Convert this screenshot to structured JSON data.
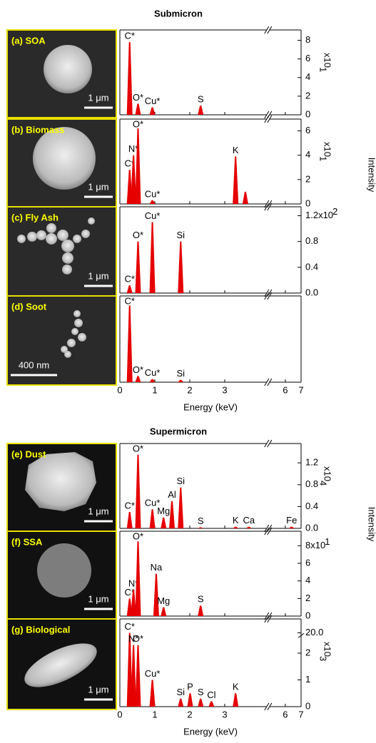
{
  "figure": {
    "section_titles": [
      "Submicron",
      "Supermicron"
    ],
    "x_label": "Energy (keV)",
    "y_label": "Intensity"
  },
  "chart_data": [
    {
      "type": "spectrum",
      "title": "(a) SOA",
      "scale_bar": "1 μm",
      "color": "#e60000",
      "x": [
        0.28,
        0.52,
        0.93,
        2.31
      ],
      "values": [
        7.8,
        1.2,
        0.8,
        1.0
      ],
      "peak_labels": [
        "C*",
        "O*",
        "Cu*",
        "S"
      ],
      "xlim": [
        0,
        7
      ],
      "xticks": [
        0,
        1,
        2,
        3,
        6,
        7
      ],
      "xbreak": [
        4.2,
        5
      ],
      "ylim": [
        0,
        8.5
      ],
      "yticks": [
        0,
        2,
        4,
        6,
        8
      ],
      "y_multiplier": "x10",
      "y_exponent": "1"
    },
    {
      "type": "spectrum",
      "title": "(b) Biomass",
      "scale_bar": "1 μm",
      "color": "#e60000",
      "x": [
        0.28,
        0.39,
        0.52,
        0.93,
        3.31,
        3.59
      ],
      "values": [
        2.8,
        4.0,
        6.2,
        0.3,
        3.9,
        1.0
      ],
      "peak_labels": [
        "C*",
        "N*",
        "O*",
        "Cu*",
        "K",
        null
      ],
      "xlim": [
        0,
        7
      ],
      "xticks": [
        0,
        1,
        2,
        3,
        6,
        7
      ],
      "xbreak": [
        4.2,
        5
      ],
      "ylim": [
        0,
        6.5
      ],
      "yticks": [
        0,
        2,
        4,
        6
      ],
      "y_multiplier": "x10",
      "y_exponent": "1"
    },
    {
      "type": "spectrum",
      "title": "(c) Fly Ash",
      "scale_bar": "1 μm",
      "color": "#e60000",
      "x": [
        0.28,
        0.52,
        0.93,
        1.74
      ],
      "values": [
        0.12,
        0.8,
        1.1,
        0.8
      ],
      "peak_labels": [
        "C*",
        "O*",
        "Cu*",
        "Si"
      ],
      "xlim": [
        0,
        7
      ],
      "xticks": [
        0,
        1,
        2,
        3,
        6,
        7
      ],
      "xbreak": [
        4.2,
        5
      ],
      "ylim": [
        0,
        1.25
      ],
      "yticks": [
        {
          "value": 0,
          "label": "0.0"
        },
        0.4,
        0.8,
        1.2
      ],
      "y_multiplier": "x10",
      "y_exponent": "2",
      "multiplier_inline": true
    },
    {
      "type": "spectrum",
      "title": "(d) Soot",
      "scale_bar": "400 nm",
      "color": "#e60000",
      "x": [
        0.28,
        0.52,
        0.93,
        1.74
      ],
      "values": [
        1.0,
        0.08,
        0.04,
        0.03
      ],
      "peak_labels": [
        "C*",
        "O*",
        "Cu*",
        "Si"
      ],
      "xlim": [
        0,
        7
      ],
      "xticks": [
        0,
        1,
        2,
        3,
        6,
        7
      ],
      "xbreak": [
        4.2,
        5
      ],
      "ylim": [
        0,
        1.05
      ],
      "show_xtick_labels": true
    },
    {
      "type": "spectrum",
      "title": "(e) Dust",
      "scale_bar": "1 μm",
      "color": "#e60000",
      "x": [
        0.28,
        0.52,
        0.93,
        1.25,
        1.49,
        1.74,
        2.31,
        3.31,
        3.69,
        6.4
      ],
      "values": [
        0.3,
        1.35,
        0.35,
        0.2,
        0.5,
        0.75,
        0.02,
        0.03,
        0.03,
        0.03
      ],
      "peak_labels": [
        "C*",
        "O*",
        "Cu*",
        "Mg",
        "Al",
        "Si",
        "S",
        "K",
        "Ca",
        "Fe"
      ],
      "xlim": [
        0,
        7
      ],
      "xticks": [
        0,
        1,
        2,
        3,
        6,
        7
      ],
      "xbreak": [
        4.2,
        5
      ],
      "ylim": [
        0,
        1.45
      ],
      "yticks": [
        {
          "value": 0,
          "label": "0.0"
        },
        0.4,
        0.8,
        1.2
      ],
      "y_multiplier": "x10",
      "y_exponent": "4"
    },
    {
      "type": "spectrum",
      "title": "(f) SSA",
      "scale_bar": "1 μm",
      "color": "#e60000",
      "x": [
        0.28,
        0.39,
        0.52,
        1.04,
        1.25,
        2.31
      ],
      "values": [
        2.0,
        3.0,
        8.5,
        4.8,
        1.0,
        1.2
      ],
      "peak_labels": [
        "C*",
        "N*",
        "O*",
        "Na",
        "Mg",
        "S"
      ],
      "xlim": [
        0,
        7
      ],
      "xticks": [
        0,
        1,
        2,
        3,
        6,
        7
      ],
      "xbreak": [
        4.2,
        5
      ],
      "ylim": [
        0,
        9
      ],
      "yticks": [
        0,
        2,
        4,
        6,
        8
      ],
      "y_multiplier": "x10",
      "y_exponent": "1",
      "multiplier_inline": true
    },
    {
      "type": "spectrum",
      "title": "(g) Biological",
      "scale_bar": "1 μm",
      "color": "#e60000",
      "x": [
        0.28,
        0.39,
        0.52,
        0.93,
        1.74,
        2.01,
        2.31,
        2.62,
        3.31
      ],
      "values": [
        20.0,
        2.3,
        2.3,
        1.0,
        0.3,
        0.5,
        0.3,
        0.2,
        0.5
      ],
      "peak_labels": [
        "C*",
        "N*",
        "O*",
        "Cu*",
        "Si",
        "P",
        "S",
        "Cl",
        "K"
      ],
      "xlim": [
        0,
        7
      ],
      "xticks": [
        0,
        1,
        2,
        3,
        6,
        7
      ],
      "xbreak": [
        4.2,
        5
      ],
      "ylim": [
        0,
        21
      ],
      "ybreak": [
        2.5,
        19.5
      ],
      "yticks": [
        0,
        1,
        2,
        {
          "value": 20,
          "label": "20.0"
        }
      ],
      "y_multiplier": "x10",
      "y_exponent": "3",
      "show_xtick_labels": true
    }
  ]
}
